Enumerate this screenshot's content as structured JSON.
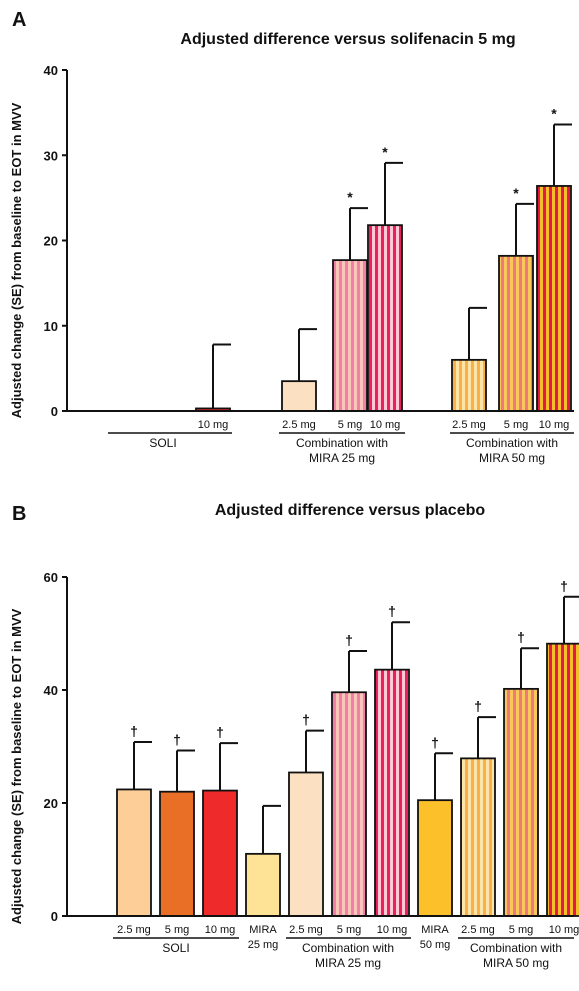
{
  "chart_data": [
    {
      "type": "bar",
      "panel": "A",
      "title": "Adjusted difference versus solifenacin 5 mg",
      "ylabel": "Adjusted change (SE) from baseline  to EOT in MVV",
      "ylim": [
        0,
        40
      ],
      "yticks": [
        0,
        10,
        20,
        30,
        40
      ],
      "bars": [
        {
          "label": "10 mg",
          "value": 0.3,
          "se": 7.5,
          "sig": "",
          "fill": "#EE2A2A",
          "stripe": null
        },
        {
          "label": "2.5 mg",
          "value": 3.5,
          "se": 6.1,
          "sig": "",
          "fill": "#FCE0C2",
          "stripe": null
        },
        {
          "label": "5 mg",
          "value": 17.7,
          "se": 6.1,
          "sig": "*",
          "fill": "#F9C7B8",
          "stripe": "#F080A8"
        },
        {
          "label": "10 mg",
          "value": 21.8,
          "se": 7.3,
          "sig": "*",
          "fill": "#FCC9D4",
          "stripe": "#E8205E"
        },
        {
          "label": "2.5 mg",
          "value": 6.0,
          "se": 6.1,
          "sig": "",
          "fill": "#FCE5A8",
          "stripe": "#F9B048"
        },
        {
          "label": "5 mg",
          "value": 18.2,
          "se": 6.1,
          "sig": "*",
          "fill": "#F9C85A",
          "stripe": "#F07A7A"
        },
        {
          "label": "10 mg",
          "value": 26.4,
          "se": 7.2,
          "sig": "*",
          "fill": "#F5BF2A",
          "stripe": "#E21A45"
        }
      ],
      "groups": [
        {
          "label_lines": [
            "SOLI"
          ]
        },
        {
          "label_lines": [
            "Combination with",
            "MIRA 25 mg"
          ]
        },
        {
          "label_lines": [
            "Combination with",
            "MIRA 50 mg"
          ]
        }
      ]
    },
    {
      "type": "bar",
      "panel": "B",
      "title": "Adjusted difference versus placebo",
      "ylabel": "Adjusted change (SE) from baseline  to EOT in MVV",
      "ylim": [
        0,
        60
      ],
      "yticks": [
        0,
        20,
        40,
        60
      ],
      "bars": [
        {
          "label": "2.5 mg",
          "value": 22.4,
          "se": 8.4,
          "sig": "†",
          "fill": "#FDCE97",
          "stripe": null
        },
        {
          "label": "5 mg",
          "value": 22.0,
          "se": 7.3,
          "sig": "†",
          "fill": "#EA6F26",
          "stripe": null
        },
        {
          "label": "10 mg",
          "value": 22.2,
          "se": 8.4,
          "sig": "†",
          "fill": "#EE2A2A",
          "stripe": null
        },
        {
          "label": "MIRA",
          "label2": "25 mg",
          "value": 11.0,
          "se": 8.5,
          "sig": "",
          "fill": "#FEE396",
          "stripe": null
        },
        {
          "label": "2.5 mg",
          "value": 25.4,
          "se": 7.4,
          "sig": "†",
          "fill": "#FCE0C2",
          "stripe": null
        },
        {
          "label": "5 mg",
          "value": 39.6,
          "se": 7.3,
          "sig": "†",
          "fill": "#F9C7B8",
          "stripe": "#F080A8"
        },
        {
          "label": "10 mg",
          "value": 43.6,
          "se": 8.4,
          "sig": "†",
          "fill": "#FCC9D4",
          "stripe": "#E8205E"
        },
        {
          "label": "MIRA",
          "label2": "50 mg",
          "value": 20.5,
          "se": 8.3,
          "sig": "†",
          "fill": "#FCC02A",
          "stripe": null
        },
        {
          "label": "2.5 mg",
          "value": 27.9,
          "se": 7.3,
          "sig": "†",
          "fill": "#FCE5A8",
          "stripe": "#F9B048"
        },
        {
          "label": "5 mg",
          "value": 40.2,
          "se": 7.2,
          "sig": "†",
          "fill": "#F9C85A",
          "stripe": "#F07A7A"
        },
        {
          "label": "10 mg",
          "value": 48.2,
          "se": 8.3,
          "sig": "†",
          "fill": "#F5BF2A",
          "stripe": "#E21A45"
        }
      ],
      "groups": [
        {
          "label_lines": [
            "SOLI"
          ]
        },
        {
          "label_lines": [
            "Combination with",
            "MIRA 25 mg"
          ]
        },
        {
          "label_lines": [
            "Combination with",
            "MIRA 50 mg"
          ]
        }
      ]
    }
  ]
}
